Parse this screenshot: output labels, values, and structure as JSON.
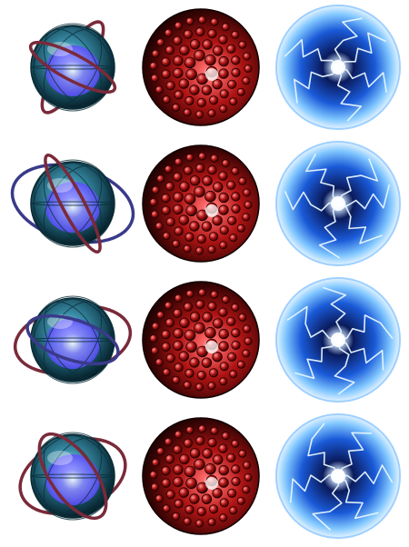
{
  "sheet": {
    "background": "#ffffff",
    "columns": [
      "gyro-orb",
      "red-cell-orb",
      "plasma-orb"
    ],
    "rows": [
      {
        "frame": 1,
        "sprites": [
          "gyro-orb",
          "red-cell-orb",
          "plasma-orb"
        ]
      },
      {
        "frame": 2,
        "sprites": [
          "gyro-orb",
          "red-cell-orb",
          "plasma-orb"
        ]
      },
      {
        "frame": 3,
        "sprites": [
          "gyro-orb",
          "red-cell-orb",
          "plasma-orb"
        ]
      },
      {
        "frame": 4,
        "sprites": [
          "gyro-orb",
          "red-cell-orb",
          "plasma-orb"
        ]
      }
    ]
  },
  "colors": {
    "gyro_glass": "#3a8ea8",
    "gyro_core": "#5a4cff",
    "ring_red": "#7a2a3a",
    "ring_blue": "#3a3a8a",
    "red_orb": "#b01414",
    "red_dark": "#1a0202",
    "plasma_blue": "#1a5ad8",
    "plasma_bolt": "#e8f6ff"
  }
}
